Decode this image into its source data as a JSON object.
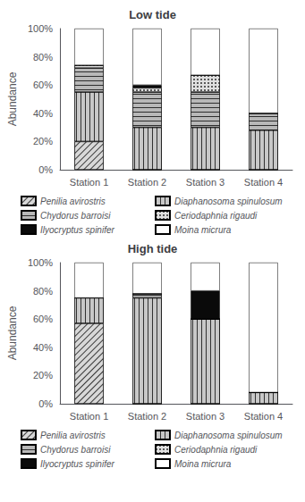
{
  "chart_data": [
    {
      "type": "bar",
      "stacked": true,
      "title": "Low tide",
      "ylabel": "Abundance",
      "categories": [
        "Station 1",
        "Station 2",
        "Station 3",
        "Station 4"
      ],
      "series": [
        {
          "name": "Penilia avirostris",
          "color": "#d8d8d8",
          "values": [
            20,
            0,
            0,
            0
          ]
        },
        {
          "name": "Diaphanosoma spinulosum",
          "color": "#c8c8c8",
          "values": [
            35,
            30,
            30,
            28
          ]
        },
        {
          "name": "Chydorus barroisi",
          "color": "#b8b8b8",
          "values": [
            17,
            25,
            25,
            12
          ]
        },
        {
          "name": "Ceriodaphnia rigaudi",
          "color": "#e0e0e0",
          "values": [
            2,
            3,
            12,
            0
          ]
        },
        {
          "name": "Ilyocryptus spinifer",
          "color": "#0a0a0a",
          "values": [
            0,
            2,
            0,
            0
          ]
        },
        {
          "name": "Moina micrura",
          "color": "#ffffff",
          "values": [
            26,
            40,
            33,
            60
          ]
        }
      ],
      "ylim": [
        0,
        100
      ],
      "yticks": [
        {
          "value": 0,
          "label": "0%"
        },
        {
          "value": 20,
          "label": "20%"
        },
        {
          "value": 40,
          "label": "40%"
        },
        {
          "value": 60,
          "label": "60%"
        },
        {
          "value": 80,
          "label": "80%"
        },
        {
          "value": 100,
          "label": "100%"
        }
      ],
      "grid": false,
      "legend": "bottom"
    },
    {
      "type": "bar",
      "stacked": true,
      "title": "High tide",
      "ylabel": "Abundance",
      "categories": [
        "Station 1",
        "Station 2",
        "Station 3",
        "Station 4"
      ],
      "series": [
        {
          "name": "Penilia avirostris",
          "color": "#d8d8d8",
          "values": [
            57,
            0,
            0,
            0
          ]
        },
        {
          "name": "Diaphanosoma spinulosum",
          "color": "#c8c8c8",
          "values": [
            18,
            75,
            60,
            8
          ]
        },
        {
          "name": "Chydorus barroisi",
          "color": "#b8b8b8",
          "values": [
            0,
            3,
            0,
            0
          ]
        },
        {
          "name": "Ceriodaphnia rigaudi",
          "color": "#e0e0e0",
          "values": [
            0,
            0,
            0,
            0
          ]
        },
        {
          "name": "Ilyocryptus spinifer",
          "color": "#0a0a0a",
          "values": [
            0,
            0,
            20,
            0
          ]
        },
        {
          "name": "Moina micrura",
          "color": "#ffffff",
          "values": [
            25,
            22,
            20,
            92
          ]
        }
      ],
      "ylim": [
        0,
        100
      ],
      "yticks": [
        {
          "value": 0,
          "label": "0%"
        },
        {
          "value": 20,
          "label": "20%"
        },
        {
          "value": 40,
          "label": "40%"
        },
        {
          "value": 60,
          "label": "60%"
        },
        {
          "value": 80,
          "label": "80%"
        },
        {
          "value": 100,
          "label": "100%"
        }
      ],
      "grid": false,
      "legend": "bottom"
    }
  ]
}
